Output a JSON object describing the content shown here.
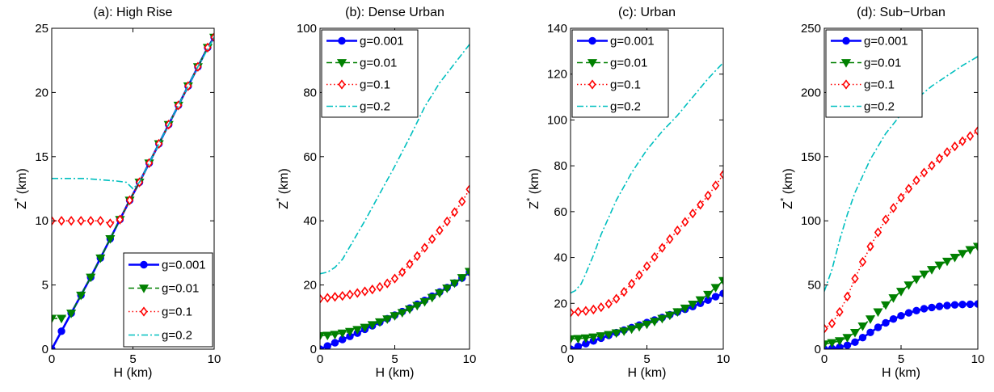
{
  "chart_data": [
    {
      "type": "line",
      "title": "(a): High Rise",
      "xlabel": "H (km)",
      "ylabel_main": "Z",
      "ylabel_sup": "*",
      "ylabel_unit": " (km)",
      "xlim": [
        0,
        10
      ],
      "ylim": [
        0,
        25
      ],
      "xticks": [
        0,
        5,
        10
      ],
      "yticks": [
        0,
        5,
        10,
        15,
        20,
        25
      ],
      "legend": "bottom-right",
      "series": [
        {
          "name": "g=0.001",
          "color": "#0000FF",
          "marker": "circle",
          "x": [
            0,
            0.6,
            1.2,
            1.8,
            2.4,
            3.0,
            3.6,
            4.2,
            4.8,
            5.4,
            6.0,
            6.6,
            7.2,
            7.8,
            8.4,
            9.0,
            9.6,
            10.0
          ],
          "y": [
            0,
            1.4,
            2.8,
            4.2,
            5.6,
            7.1,
            8.6,
            10.1,
            11.6,
            13.0,
            14.5,
            16.0,
            17.5,
            19.0,
            20.5,
            22.0,
            23.5,
            24.3
          ]
        },
        {
          "name": "g=0.01",
          "color": "#008000",
          "marker": "triangle-down",
          "x": [
            0,
            0.6,
            1.2,
            1.8,
            2.4,
            3.0,
            3.6,
            4.2,
            4.8,
            5.4,
            6.0,
            6.6,
            7.2,
            7.8,
            8.4,
            9.0,
            9.6,
            10.0
          ],
          "y": [
            2.4,
            2.4,
            2.8,
            4.2,
            5.6,
            7.1,
            8.6,
            10.1,
            11.6,
            13.0,
            14.5,
            16.0,
            17.5,
            19.0,
            20.5,
            22.0,
            23.5,
            24.3
          ]
        },
        {
          "name": "g=0.1",
          "color": "#FF0000",
          "marker": "diamond",
          "x": [
            0,
            0.6,
            1.2,
            1.8,
            2.4,
            3.0,
            3.6,
            4.2,
            4.8,
            5.4,
            6.0,
            6.6,
            7.2,
            7.8,
            8.4,
            9.0,
            9.6,
            10.0
          ],
          "y": [
            10.0,
            10.0,
            10.0,
            10.0,
            10.0,
            10.0,
            9.8,
            10.1,
            11.6,
            13.0,
            14.5,
            16.0,
            17.5,
            19.0,
            20.5,
            22.0,
            23.5,
            24.3
          ]
        },
        {
          "name": "g=0.2",
          "color": "#00BFBF",
          "marker": "none",
          "x": [
            0,
            1,
            2,
            3,
            4,
            4.6,
            5,
            5.4,
            6,
            7,
            8,
            9,
            10
          ],
          "y": [
            13.3,
            13.3,
            13.3,
            13.2,
            13.1,
            13.0,
            12.5,
            13.0,
            14.5,
            17.0,
            19.5,
            22.0,
            24.3
          ]
        }
      ]
    },
    {
      "type": "line",
      "title": "(b): Dense Urban",
      "xlabel": "H (km)",
      "ylabel_main": "Z",
      "ylabel_sup": "*",
      "ylabel_unit": " (km)",
      "xlim": [
        0,
        10
      ],
      "ylim": [
        0,
        100
      ],
      "xticks": [
        0,
        5,
        10
      ],
      "yticks": [
        0,
        20,
        40,
        60,
        80,
        100
      ],
      "legend": "top-left",
      "series": [
        {
          "name": "g=0.001",
          "color": "#0000FF",
          "marker": "circle",
          "x": [
            0,
            0.5,
            1,
            1.5,
            2,
            2.5,
            3,
            3.5,
            4,
            4.5,
            5,
            5.5,
            6,
            6.5,
            7,
            7.5,
            8,
            8.5,
            9,
            9.5,
            10
          ],
          "y": [
            0,
            1.0,
            2.0,
            3.0,
            4.0,
            5.0,
            6.2,
            7.3,
            8.4,
            9.5,
            10.6,
            11.7,
            12.8,
            14.0,
            15.2,
            16.5,
            17.8,
            19.2,
            20.6,
            22.2,
            24.0
          ]
        },
        {
          "name": "g=0.01",
          "color": "#008000",
          "marker": "triangle-down",
          "x": [
            0,
            0.5,
            1,
            1.5,
            2,
            2.5,
            3,
            3.5,
            4,
            4.5,
            5,
            5.5,
            6,
            6.5,
            7,
            7.5,
            8,
            8.5,
            9,
            9.5,
            10
          ],
          "y": [
            4.2,
            4.3,
            4.6,
            5.0,
            5.5,
            6.1,
            6.8,
            7.6,
            8.5,
            9.4,
            10.4,
            11.4,
            12.5,
            13.6,
            14.8,
            16.1,
            17.5,
            19.0,
            20.6,
            22.3,
            24.2
          ]
        },
        {
          "name": "g=0.1",
          "color": "#FF0000",
          "marker": "diamond",
          "x": [
            0,
            0.5,
            1,
            1.5,
            2,
            2.5,
            3,
            3.5,
            4,
            4.5,
            5,
            5.5,
            6,
            6.5,
            7,
            7.5,
            8,
            8.5,
            9,
            9.5,
            10
          ],
          "y": [
            15.7,
            16.0,
            16.3,
            16.6,
            17.0,
            17.5,
            18.0,
            18.6,
            19.4,
            20.5,
            22.0,
            24.0,
            26.5,
            29.0,
            31.6,
            34.3,
            37.0,
            39.8,
            42.7,
            46.0,
            49.8
          ]
        },
        {
          "name": "g=0.2",
          "color": "#00BFBF",
          "marker": "none",
          "x": [
            0,
            0.5,
            1,
            1.5,
            2,
            3,
            4,
            5,
            6,
            7,
            8,
            9,
            10
          ],
          "y": [
            23.5,
            24.0,
            25.5,
            28.0,
            32.0,
            40.0,
            48.5,
            57.0,
            66.0,
            75.5,
            83.0,
            89.0,
            95.0
          ]
        }
      ]
    },
    {
      "type": "line",
      "title": "(c): Urban",
      "xlabel": "H (km)",
      "ylabel_main": "Z",
      "ylabel_sup": "*",
      "ylabel_unit": " (km)",
      "xlim": [
        0,
        10
      ],
      "ylim": [
        0,
        140
      ],
      "xticks": [
        0,
        5,
        10
      ],
      "yticks": [
        0,
        20,
        40,
        60,
        80,
        100,
        120,
        140
      ],
      "legend": "top-left",
      "series": [
        {
          "name": "g=0.001",
          "color": "#0000FF",
          "marker": "circle",
          "x": [
            0,
            0.5,
            1,
            1.5,
            2,
            2.5,
            3,
            3.5,
            4,
            4.5,
            5,
            5.5,
            6,
            6.5,
            7,
            7.5,
            8,
            8.5,
            9,
            9.5,
            10
          ],
          "y": [
            0,
            1.2,
            2.4,
            3.6,
            4.8,
            6.0,
            7.2,
            8.3,
            9.4,
            10.5,
            11.6,
            12.7,
            13.8,
            15.0,
            16.2,
            17.4,
            18.6,
            20.0,
            21.4,
            22.9,
            24.3
          ]
        },
        {
          "name": "g=0.01",
          "color": "#008000",
          "marker": "triangle-down",
          "x": [
            0,
            0.5,
            1,
            1.5,
            2,
            2.5,
            3,
            3.5,
            4,
            4.5,
            5,
            5.5,
            6,
            6.5,
            7,
            7.5,
            8,
            8.5,
            9,
            9.5,
            10
          ],
          "y": [
            4.5,
            4.6,
            4.9,
            5.3,
            5.8,
            6.4,
            7.1,
            7.9,
            8.8,
            9.8,
            10.9,
            12.1,
            13.4,
            14.8,
            16.3,
            17.9,
            19.6,
            21.5,
            23.9,
            26.9,
            29.9
          ]
        },
        {
          "name": "g=0.1",
          "color": "#FF0000",
          "marker": "diamond",
          "x": [
            0,
            0.5,
            1,
            1.5,
            2,
            2.5,
            3,
            3.5,
            4,
            4.5,
            5,
            5.5,
            6,
            6.5,
            7,
            7.5,
            8,
            8.5,
            9,
            9.5,
            10
          ],
          "y": [
            16.0,
            16.3,
            16.7,
            17.3,
            18.3,
            19.8,
            22.0,
            25.0,
            28.5,
            32.3,
            36.2,
            40.2,
            44.2,
            48.0,
            51.8,
            55.5,
            59.2,
            63.0,
            67.0,
            71.4,
            76.2
          ]
        },
        {
          "name": "g=0.2",
          "color": "#00BFBF",
          "marker": "none",
          "x": [
            0,
            0.3,
            0.7,
            1,
            1.5,
            2,
            3,
            4,
            5,
            6,
            7,
            8,
            9,
            10
          ],
          "y": [
            24.5,
            25.5,
            28.5,
            33.0,
            41.0,
            50.0,
            65.0,
            77.0,
            87.0,
            95.0,
            102.0,
            110.0,
            118.0,
            125.0
          ]
        }
      ]
    },
    {
      "type": "line",
      "title": "(d): Sub−Urban",
      "xlabel": "H (km)",
      "ylabel_main": "Z",
      "ylabel_sup": "*",
      "ylabel_unit": " (km)",
      "xlim": [
        0,
        10
      ],
      "ylim": [
        0,
        250
      ],
      "xticks": [
        0,
        5,
        10
      ],
      "yticks": [
        0,
        50,
        100,
        150,
        200,
        250
      ],
      "legend": "top-left",
      "series": [
        {
          "name": "g=0.001",
          "color": "#0000FF",
          "marker": "circle",
          "x": [
            0,
            0.5,
            1,
            1.5,
            2,
            2.5,
            3,
            3.5,
            4,
            4.5,
            5,
            5.5,
            6,
            6.5,
            7,
            7.5,
            8,
            8.5,
            9,
            9.5,
            10
          ],
          "y": [
            0,
            0.5,
            1.5,
            3.0,
            5.5,
            9.0,
            13.0,
            17.0,
            20.5,
            23.5,
            26.0,
            28.3,
            30.0,
            31.5,
            32.5,
            33.3,
            34.0,
            34.5,
            34.8,
            35.0,
            35.2
          ]
        },
        {
          "name": "g=0.01",
          "color": "#008000",
          "marker": "triangle-down",
          "x": [
            0,
            0.5,
            1,
            1.5,
            2,
            2.5,
            3,
            3.5,
            4,
            4.5,
            5,
            5.5,
            6,
            6.5,
            7,
            7.5,
            8,
            8.5,
            9,
            9.5,
            10
          ],
          "y": [
            4.0,
            5.0,
            6.5,
            9.0,
            13.0,
            18.0,
            23.5,
            29.0,
            34.5,
            40.0,
            45.0,
            50.0,
            54.5,
            58.5,
            62.0,
            65.5,
            68.5,
            71.5,
            74.5,
            77.5,
            80.0
          ]
        },
        {
          "name": "g=0.1",
          "color": "#FF0000",
          "marker": "diamond",
          "x": [
            0,
            0.5,
            1,
            1.5,
            2,
            2.5,
            3,
            3.5,
            4,
            4.5,
            5,
            5.5,
            6,
            6.5,
            7,
            7.5,
            8,
            8.5,
            9,
            9.5,
            10
          ],
          "y": [
            16.0,
            20.0,
            29.0,
            41.0,
            55.0,
            68.0,
            80.0,
            91.0,
            101.0,
            110.0,
            118.0,
            125.0,
            131.5,
            137.5,
            143.0,
            148.5,
            153.5,
            158.0,
            162.0,
            166.0,
            170.0
          ]
        },
        {
          "name": "g=0.2",
          "color": "#00BFBF",
          "marker": "none",
          "x": [
            0,
            0.5,
            1,
            1.5,
            2,
            3,
            4,
            5,
            6,
            7,
            8,
            9,
            10
          ],
          "y": [
            45.0,
            62.0,
            85.0,
            105.0,
            122.0,
            148.0,
            168.0,
            183.0,
            195.0,
            205.0,
            213.0,
            221.0,
            228.0
          ]
        }
      ]
    }
  ]
}
